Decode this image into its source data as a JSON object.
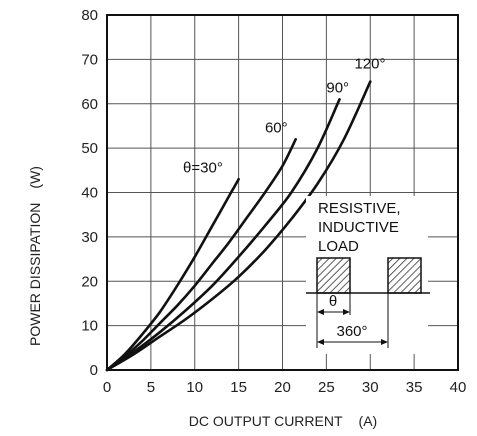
{
  "chart_data": {
    "type": "line",
    "xlabel": "DC OUTPUT CURRENT",
    "xunit": "(A)",
    "ylabel": "POWER DISSIPATION",
    "yunit": "(W)",
    "xlim": [
      0,
      40
    ],
    "ylim": [
      0,
      80
    ],
    "xticks": [
      0,
      5,
      10,
      15,
      20,
      25,
      30,
      35,
      40
    ],
    "yticks": [
      0,
      10,
      20,
      30,
      40,
      50,
      60,
      70,
      80
    ],
    "grid": true,
    "series": [
      {
        "name": "θ=30°",
        "x": [
          0,
          2,
          4,
          6,
          8,
          10,
          12,
          14,
          15
        ],
        "y": [
          0,
          3.5,
          8.0,
          13.0,
          19.0,
          25.5,
          32.5,
          39.5,
          43.0
        ]
      },
      {
        "name": "60°",
        "x": [
          0,
          2,
          4,
          6,
          8,
          10,
          12,
          14,
          16,
          18,
          20,
          21.5
        ],
        "y": [
          0,
          3.0,
          6.5,
          10.5,
          14.5,
          19.0,
          24.0,
          29.0,
          34.5,
          40.0,
          46.0,
          52.0
        ]
      },
      {
        "name": "90°",
        "x": [
          0,
          3,
          6,
          9,
          12,
          15,
          18,
          21,
          24,
          26.5
        ],
        "y": [
          0,
          4.0,
          8.5,
          13.5,
          19.0,
          25.5,
          32.5,
          40.0,
          50.0,
          61.0
        ]
      },
      {
        "name": "120°",
        "x": [
          0,
          3,
          6,
          9,
          12,
          15,
          18,
          21,
          24,
          27,
          30
        ],
        "y": [
          0,
          3.5,
          7.5,
          11.5,
          16.0,
          21.0,
          27.0,
          34.0,
          42.0,
          52.0,
          65.0
        ]
      }
    ],
    "inset": {
      "load_label_lines": [
        "RESISTIVE,",
        "INDUCTIVE",
        "LOAD"
      ],
      "theta_label": "θ",
      "period_label": "360°"
    }
  }
}
